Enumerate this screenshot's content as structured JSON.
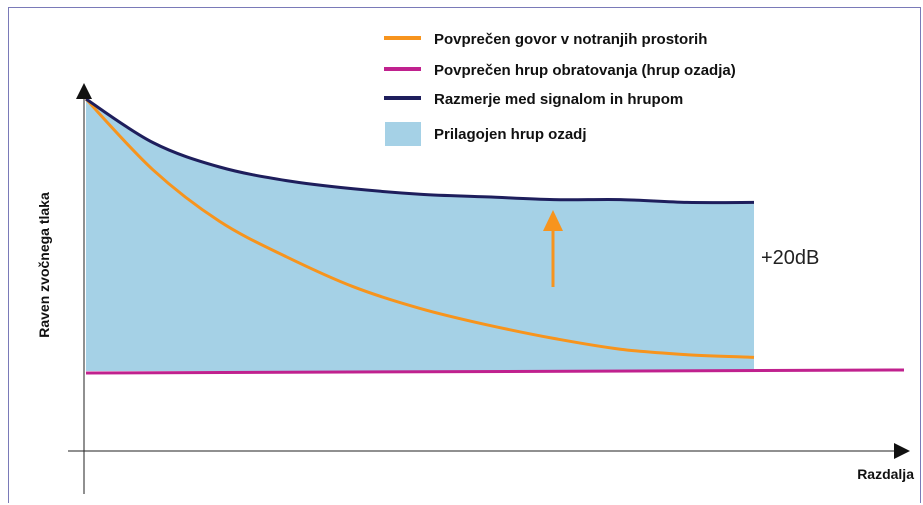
{
  "chart_data": {
    "type": "line",
    "title": "",
    "xlabel": "Razdalja",
    "ylabel": "Raven zvočnega tlaka",
    "x": [
      0,
      0.1,
      0.2,
      0.3,
      0.4,
      0.5,
      0.6,
      0.7,
      0.8,
      0.9,
      1.0
    ],
    "series": [
      {
        "name": "Povprečen govor v notranjih prostorih",
        "color": "#f7941d",
        "values": [
          1.0,
          0.74,
          0.55,
          0.42,
          0.31,
          0.23,
          0.17,
          0.12,
          0.08,
          0.06,
          0.05
        ]
      },
      {
        "name": "Povprečen hrup obratovanja (hrup ozadja)",
        "color": "#c0218e",
        "values": [
          0,
          0,
          0,
          0,
          0,
          0,
          0,
          0,
          0,
          0,
          0
        ]
      },
      {
        "name": "Razmerje med signalom in hrupom",
        "color": "#1e1e5c",
        "values": [
          1.0,
          0.84,
          0.75,
          0.7,
          0.67,
          0.65,
          0.64,
          0.63,
          0.63,
          0.62,
          0.62
        ]
      }
    ],
    "area": {
      "name": "Prilagojen hrup ozadj",
      "color": "#a5d1e6"
    },
    "annotation": "+20dB",
    "legend_position": "top-right",
    "grid": false,
    "ylim": [
      -0.35,
      1.0
    ]
  }
}
